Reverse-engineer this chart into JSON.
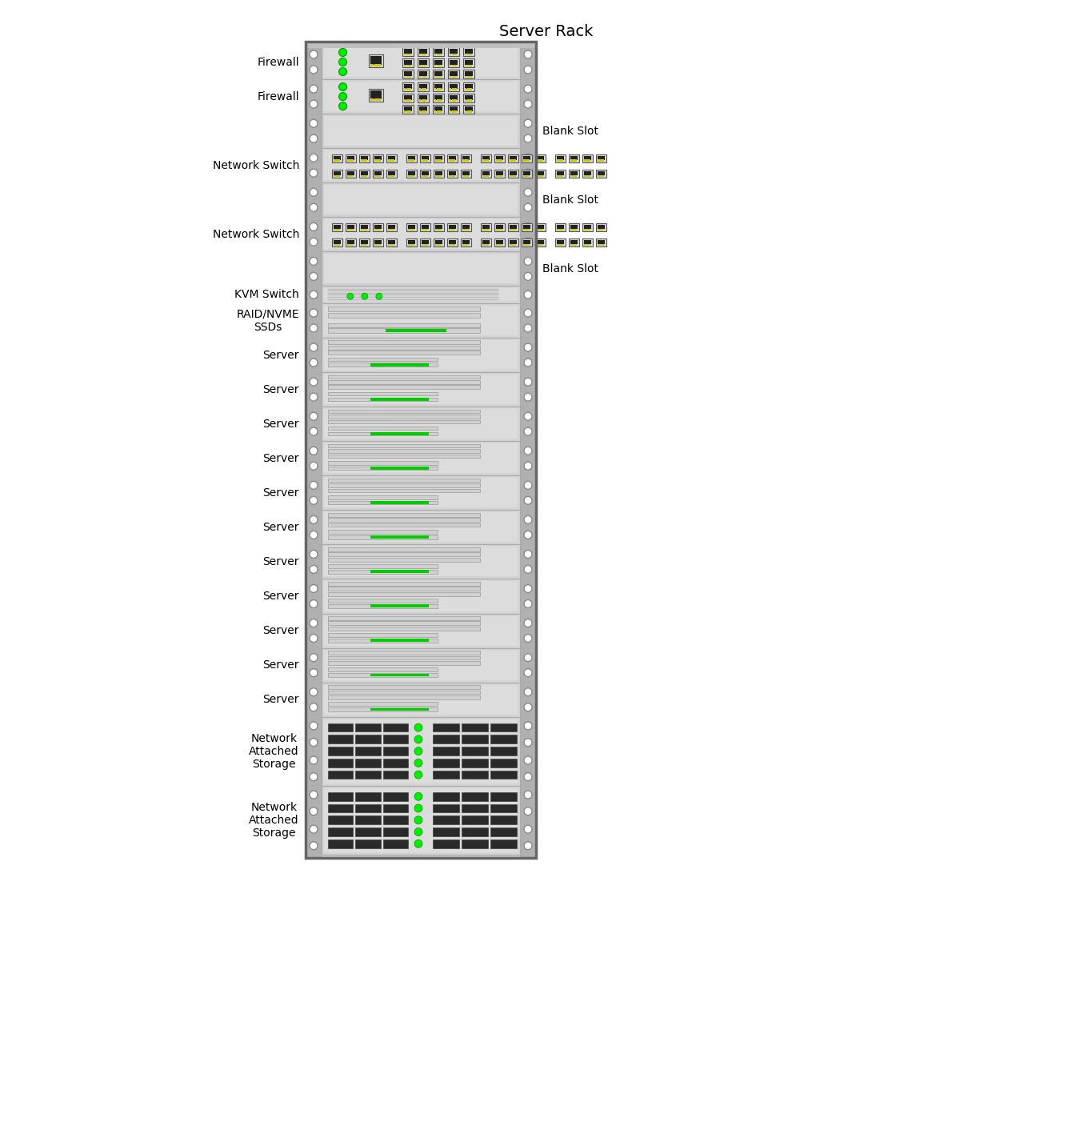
{
  "title": "Server Rack",
  "components": [
    {
      "label": "Firewall",
      "type": "firewall",
      "rows": 2
    },
    {
      "label": "Firewall",
      "type": "firewall",
      "rows": 2
    },
    {
      "label": "",
      "type": "blank",
      "rows": 2,
      "right_label": "Blank Slot"
    },
    {
      "label": "Network Switch",
      "type": "switch",
      "rows": 2
    },
    {
      "label": "",
      "type": "blank",
      "rows": 2,
      "right_label": "Blank Slot"
    },
    {
      "label": "Network Switch",
      "type": "switch",
      "rows": 2
    },
    {
      "label": "",
      "type": "blank",
      "rows": 2,
      "right_label": "Blank Slot"
    },
    {
      "label": "KVM Switch",
      "type": "kvm",
      "rows": 1
    },
    {
      "label": "RAID/NVME\nSSDs",
      "type": "raid",
      "rows": 2
    },
    {
      "label": "Server",
      "type": "server",
      "rows": 2
    },
    {
      "label": "Server",
      "type": "server",
      "rows": 2
    },
    {
      "label": "Server",
      "type": "server",
      "rows": 2
    },
    {
      "label": "Server",
      "type": "server",
      "rows": 2
    },
    {
      "label": "Server",
      "type": "server",
      "rows": 2
    },
    {
      "label": "Server",
      "type": "server",
      "rows": 2
    },
    {
      "label": "Server",
      "type": "server",
      "rows": 2
    },
    {
      "label": "Server",
      "type": "server",
      "rows": 2
    },
    {
      "label": "Server",
      "type": "server",
      "rows": 2
    },
    {
      "label": "Server",
      "type": "server",
      "rows": 2
    },
    {
      "label": "Server",
      "type": "server",
      "rows": 2
    },
    {
      "label": "Network\nAttached\nStorage",
      "type": "nas",
      "rows": 4
    },
    {
      "label": "Network\nAttached\nStorage",
      "type": "nas",
      "rows": 4
    }
  ]
}
